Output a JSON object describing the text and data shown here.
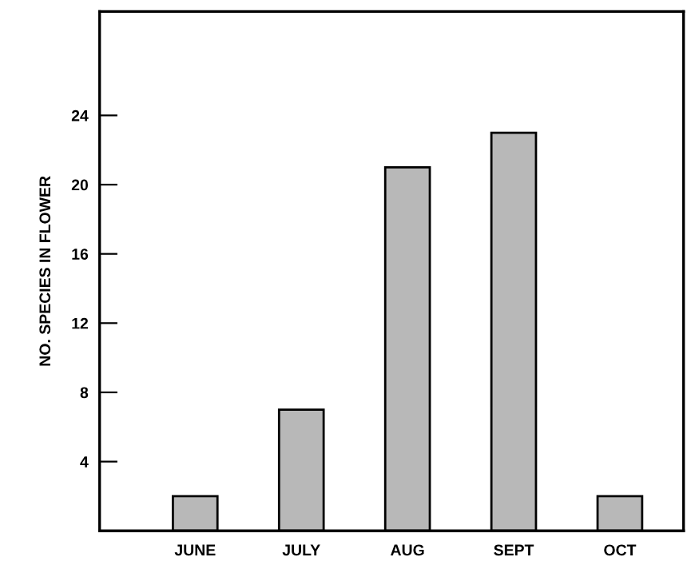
{
  "chart_data": {
    "type": "bar",
    "ylabel": "NO. SPECIES IN FLOWER",
    "categories": [
      "JUNE",
      "JULY",
      "AUG",
      "SEPT",
      "OCT"
    ],
    "values": [
      2,
      7,
      21,
      23,
      2
    ],
    "color": "#b8b8b8",
    "ylim": [
      0,
      30
    ],
    "yticks": [
      4,
      8,
      12,
      16,
      20,
      24
    ],
    "grid": false
  }
}
